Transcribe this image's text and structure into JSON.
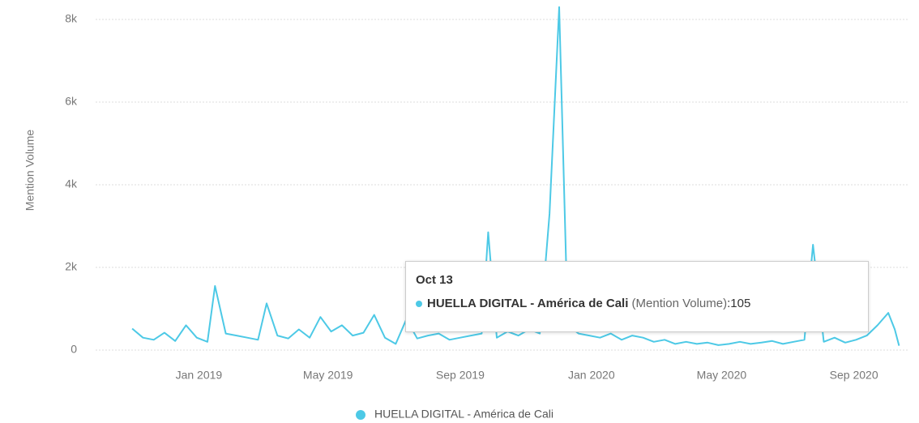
{
  "chart_data": {
    "type": "line",
    "y_label": "Mention Volume",
    "xlim": [
      "2018-09-27",
      "2020-10-21"
    ],
    "xticks": [
      {
        "value": "2019-01-01",
        "label": "Jan 2019"
      },
      {
        "value": "2019-05-01",
        "label": "May 2019"
      },
      {
        "value": "2019-09-01",
        "label": "Sep 2019"
      },
      {
        "value": "2020-01-01",
        "label": "Jan 2020"
      },
      {
        "value": "2020-05-01",
        "label": "May 2020"
      },
      {
        "value": "2020-09-01",
        "label": "Sep 2020"
      }
    ],
    "ylim": [
      0,
      8400
    ],
    "yticks": [
      0,
      {
        "value": 2000,
        "label": "2k"
      },
      {
        "value": 4000,
        "label": "4k"
      },
      {
        "value": 6000,
        "label": "6k"
      },
      {
        "value": 8000,
        "label": "8k"
      }
    ],
    "grid": true,
    "x": [
      "2018-10-31",
      "2018-11-10",
      "2018-11-20",
      "2018-11-30",
      "2018-12-10",
      "2018-12-20",
      "2018-12-30",
      "2019-01-09",
      "2019-01-16",
      "2019-01-26",
      "2019-02-05",
      "2019-02-15",
      "2019-02-25",
      "2019-03-05",
      "2019-03-15",
      "2019-03-25",
      "2019-04-04",
      "2019-04-14",
      "2019-04-24",
      "2019-05-04",
      "2019-05-14",
      "2019-05-24",
      "2019-06-03",
      "2019-06-13",
      "2019-06-23",
      "2019-07-03",
      "2019-07-13",
      "2019-07-23",
      "2019-08-02",
      "2019-08-12",
      "2019-08-22",
      "2019-09-01",
      "2019-09-11",
      "2019-09-21",
      "2019-09-27",
      "2019-10-05",
      "2019-10-15",
      "2019-10-25",
      "2019-11-04",
      "2019-11-14",
      "2019-11-23",
      "2019-12-02",
      "2019-12-10",
      "2019-12-20",
      "2019-12-30",
      "2020-01-09",
      "2020-01-19",
      "2020-01-29",
      "2020-02-08",
      "2020-02-18",
      "2020-02-28",
      "2020-03-09",
      "2020-03-19",
      "2020-03-29",
      "2020-04-08",
      "2020-04-18",
      "2020-04-28",
      "2020-05-08",
      "2020-05-18",
      "2020-05-28",
      "2020-06-07",
      "2020-06-17",
      "2020-06-27",
      "2020-07-07",
      "2020-07-17",
      "2020-07-25",
      "2020-08-04",
      "2020-08-14",
      "2020-08-24",
      "2020-09-03",
      "2020-09-13",
      "2020-09-23",
      "2020-10-03",
      "2020-10-09",
      "2020-10-13"
    ],
    "series": [
      {
        "name": "HUELLA DIGITAL - América de Cali",
        "color": "#4dc9e6",
        "values": [
          520,
          300,
          250,
          420,
          220,
          600,
          300,
          200,
          1550,
          400,
          350,
          300,
          250,
          1130,
          350,
          280,
          500,
          300,
          800,
          450,
          600,
          350,
          420,
          850,
          300,
          150,
          750,
          280,
          350,
          400,
          250,
          300,
          350,
          400,
          2850,
          300,
          450,
          350,
          500,
          400,
          3300,
          8300,
          600,
          400,
          350,
          300,
          400,
          250,
          350,
          300,
          200,
          250,
          150,
          200,
          150,
          180,
          120,
          150,
          200,
          150,
          180,
          220,
          150,
          200,
          250,
          2550,
          200,
          300,
          180,
          250,
          350,
          600,
          900,
          500,
          105
        ]
      }
    ],
    "tooltip": {
      "title": "Oct 13",
      "measure": "(Mention Volume)",
      "value_text": ":105"
    }
  }
}
